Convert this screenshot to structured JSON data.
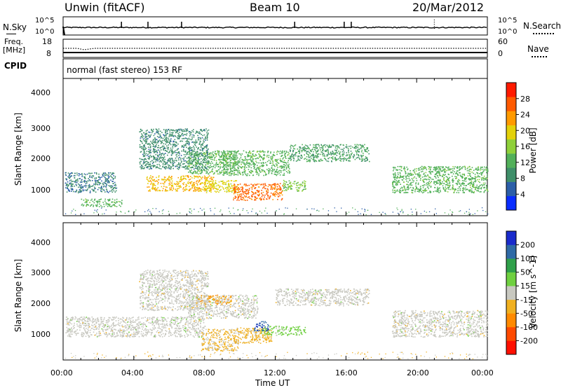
{
  "header": {
    "station": "Unwin (fitACF)",
    "beam": "Beam 10",
    "date": "20/Mar/2012"
  },
  "noise_panel": {
    "left_label": "N.Sky",
    "right_label": "N.Search",
    "left_ticks": [
      "10^5",
      "10^0"
    ],
    "right_ticks": [
      "10^5",
      "10^0"
    ]
  },
  "freq_panel": {
    "left_label_1": "Freq.",
    "left_label_2": "[MHz]",
    "right_label": "Nave",
    "left_ticks": [
      "18",
      "8"
    ],
    "right_ticks": [
      "60",
      "0"
    ]
  },
  "cpid_panel": {
    "label": "CPID",
    "text": "normal (fast stereo) 153 RF"
  },
  "power_panel": {
    "ylabel": "Slant Range [km]",
    "yticks": [
      "4000",
      "3000",
      "2000",
      "1000"
    ],
    "colorbar_label": "Power [dB]",
    "colorbar_ticks": [
      "28",
      "24",
      "20",
      "16",
      "12",
      "8",
      "4"
    ],
    "colors": [
      "#0a2dff",
      "#2c5fa8",
      "#3f8f6a",
      "#52b05a",
      "#8fd03a",
      "#e3d10a",
      "#ff9a00",
      "#ff5a00",
      "#ff1a00"
    ]
  },
  "velocity_panel": {
    "ylabel": "Slant Range [km]",
    "yticks": [
      "4000",
      "3000",
      "2000",
      "1000"
    ],
    "colorbar_label": "Velocity [m s^-1]",
    "colorbar_ticks": [
      "200",
      "100",
      "50",
      "15",
      "-15",
      "-50",
      "-100",
      "-200"
    ],
    "colors": [
      "#1a2bcc",
      "#2f6aa6",
      "#2fa04a",
      "#6fd040",
      "#c8c8c0",
      "#f0b020",
      "#ff8a00",
      "#ff4a00",
      "#ff1000"
    ]
  },
  "x_axis": {
    "ticks": [
      "00:00",
      "04:00",
      "08:00",
      "12:00",
      "16:00",
      "20:00",
      "00:00"
    ],
    "label": "Time UT"
  },
  "chart_data": {
    "type": "heatmap",
    "x_range_hours": [
      0,
      24
    ],
    "y_range_km": [
      200,
      4600
    ],
    "series": [
      {
        "name": "Power",
        "units": "dB",
        "range": [
          0,
          30
        ],
        "regions": [
          {
            "t": [
              0.1,
              3.0
            ],
            "r": [
              950,
              1600
            ],
            "value": 7
          },
          {
            "t": [
              1.0,
              3.3
            ],
            "r": [
              500,
              750
            ],
            "value": 12
          },
          {
            "t": [
              4.7,
              8.5
            ],
            "r": [
              1000,
              1500
            ],
            "value": 20
          },
          {
            "t": [
              7.0,
              9.8
            ],
            "r": [
              1550,
              2300
            ],
            "value": 12
          },
          {
            "t": [
              8.0,
              9.9
            ],
            "r": [
              950,
              1350
            ],
            "value": 18
          },
          {
            "t": [
              9.6,
              12.4
            ],
            "r": [
              700,
              1250
            ],
            "value": 24
          },
          {
            "t": [
              12.4,
              13.7
            ],
            "r": [
              1000,
              1350
            ],
            "value": 14
          },
          {
            "t": [
              4.3,
              8.2
            ],
            "r": [
              1700,
              3000
            ],
            "value": 8
          },
          {
            "t": [
              9.0,
              12.8
            ],
            "r": [
              1500,
              2300
            ],
            "value": 12
          },
          {
            "t": [
              12.8,
              17.3
            ],
            "r": [
              1950,
              2500
            ],
            "value": 10
          },
          {
            "t": [
              18.6,
              24.0
            ],
            "r": [
              950,
              1800
            ],
            "value": 12
          }
        ]
      },
      {
        "name": "Velocity",
        "units": "m s^-1",
        "range": [
          -200,
          200
        ],
        "regions": [
          {
            "t": [
              0.1,
              8.0
            ],
            "r": [
              950,
              1600
            ],
            "value": 0
          },
          {
            "t": [
              7.0,
              11.0
            ],
            "r": [
              1550,
              2300
            ],
            "value": 0
          },
          {
            "t": [
              7.5,
              9.5
            ],
            "r": [
              2000,
              2300
            ],
            "value": -60
          },
          {
            "t": [
              7.8,
              9.9
            ],
            "r": [
              500,
              1200
            ],
            "value": -30
          },
          {
            "t": [
              9.6,
              11.8
            ],
            "r": [
              750,
              1250
            ],
            "value": -40
          },
          {
            "t": [
              11.2,
              13.7
            ],
            "r": [
              1000,
              1300
            ],
            "value": 40
          },
          {
            "t": [
              10.8,
              11.6
            ],
            "r": [
              1150,
              1450
            ],
            "value": 150
          },
          {
            "t": [
              12.0,
              17.3
            ],
            "r": [
              1950,
              2500
            ],
            "value": 0
          },
          {
            "t": [
              18.6,
              24.0
            ],
            "r": [
              950,
              1800
            ],
            "value": 0
          },
          {
            "t": [
              4.3,
              8.2
            ],
            "r": [
              1800,
              3100
            ],
            "value": 0
          }
        ]
      }
    ]
  }
}
